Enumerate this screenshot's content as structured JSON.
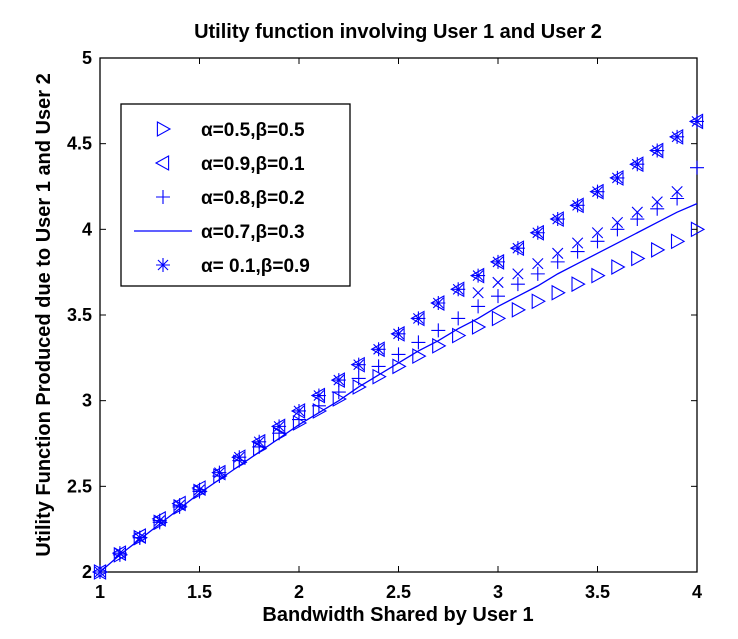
{
  "chart_data": {
    "type": "line",
    "title": "Utility function involving User 1 and User 2",
    "xlabel": "Bandwidth Shared by User 1",
    "ylabel": "Utility Function Produced due to User 1 and User 2",
    "xlim": [
      1,
      4
    ],
    "ylim": [
      2,
      5
    ],
    "xticks": [
      1,
      1.5,
      2,
      2.5,
      3,
      3.5,
      4
    ],
    "xtick_labels": [
      "1",
      "1.5",
      "2",
      "2.5",
      "3",
      "3.5",
      "4"
    ],
    "yticks": [
      2,
      2.5,
      3,
      3.5,
      4,
      4.5,
      5
    ],
    "ytick_labels": [
      "2",
      "2.5",
      "3",
      "3.5",
      "4",
      "4.5",
      "5"
    ],
    "grid": false,
    "legend_position": "top-left",
    "x": [
      1.0,
      1.1,
      1.2,
      1.3,
      1.4,
      1.5,
      1.6,
      1.7,
      1.8,
      1.9,
      2.0,
      2.1,
      2.2,
      2.3,
      2.4,
      2.5,
      2.6,
      2.7,
      2.8,
      2.9,
      3.0,
      3.1,
      3.2,
      3.3,
      3.4,
      3.5,
      3.6,
      3.7,
      3.8,
      3.9,
      4.0
    ],
    "series": [
      {
        "name": "α=0.5,β=0.5",
        "marker": "triangle-right",
        "values": [
          2.0,
          2.1,
          2.2,
          2.29,
          2.38,
          2.47,
          2.56,
          2.64,
          2.72,
          2.8,
          2.87,
          2.94,
          3.01,
          3.08,
          3.14,
          3.2,
          3.26,
          3.32,
          3.38,
          3.43,
          3.48,
          3.53,
          3.58,
          3.63,
          3.68,
          3.73,
          3.78,
          3.83,
          3.88,
          3.93,
          4.0
        ]
      },
      {
        "name": "α=0.9,β=0.1",
        "marker": "triangle-left",
        "values": [
          2.0,
          2.11,
          2.21,
          2.31,
          2.4,
          2.49,
          2.58,
          2.67,
          2.76,
          2.85,
          2.94,
          3.03,
          3.12,
          3.21,
          3.3,
          3.39,
          3.48,
          3.57,
          3.65,
          3.73,
          3.81,
          3.89,
          3.98,
          4.06,
          4.14,
          4.22,
          4.3,
          4.38,
          4.46,
          4.54,
          4.63
        ]
      },
      {
        "name": "α=0.8,β=0.2",
        "marker": "plus",
        "values": [
          2.0,
          2.1,
          2.2,
          2.29,
          2.38,
          2.47,
          2.56,
          2.65,
          2.73,
          2.81,
          2.89,
          2.97,
          3.05,
          3.13,
          3.2,
          3.27,
          3.34,
          3.41,
          3.48,
          3.55,
          3.61,
          3.68,
          3.74,
          3.81,
          3.87,
          3.93,
          4.0,
          4.06,
          4.12,
          4.18,
          4.36
        ]
      },
      {
        "name": "α=0.7,β=0.3",
        "marker": "line",
        "values": [
          2.0,
          2.1,
          2.19,
          2.28,
          2.37,
          2.46,
          2.54,
          2.62,
          2.7,
          2.78,
          2.86,
          2.93,
          3.0,
          3.08,
          3.15,
          3.22,
          3.29,
          3.35,
          3.42,
          3.48,
          3.55,
          3.61,
          3.67,
          3.74,
          3.8,
          3.86,
          3.92,
          3.98,
          4.04,
          4.1,
          4.15
        ]
      },
      {
        "name": "α= 0.1,β=0.9",
        "marker": "star",
        "values": [
          2.0,
          2.11,
          2.2,
          2.3,
          2.39,
          2.48,
          2.58,
          2.67,
          2.76,
          2.85,
          2.94,
          3.03,
          3.12,
          3.21,
          3.3,
          3.39,
          3.48,
          3.57,
          3.65,
          3.73,
          3.81,
          3.89,
          3.98,
          4.06,
          4.14,
          4.22,
          4.3,
          4.38,
          4.46,
          4.54,
          4.63
        ]
      }
    ],
    "extra_series": {
      "marker": "x",
      "x": [
        2.9,
        3.0,
        3.1,
        3.2,
        3.3,
        3.4,
        3.5,
        3.6,
        3.7,
        3.8,
        3.9
      ],
      "values": [
        3.63,
        3.69,
        3.74,
        3.8,
        3.86,
        3.92,
        3.98,
        4.04,
        4.1,
        4.16,
        4.22
      ]
    },
    "colors": {
      "series": "#0000ff",
      "axes": "#000000",
      "background": "#ffffff"
    }
  }
}
